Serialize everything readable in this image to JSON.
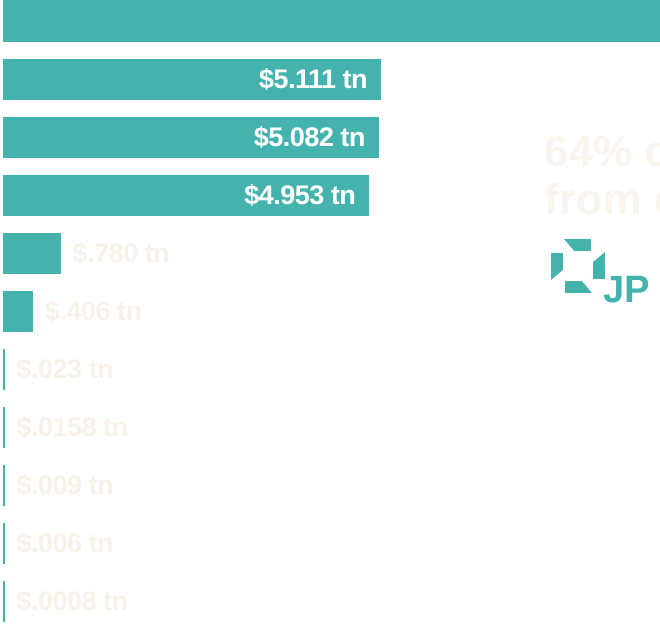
{
  "chart_data": {
    "type": "bar",
    "orientation": "horizontal",
    "values": [
      5.111,
      5.082,
      4.953,
      0.78,
      0.406,
      0.023,
      0.0158,
      0.009,
      0.006,
      0.0008
    ],
    "value_labels": [
      "$5.111 tn",
      "$5.082 tn",
      "$4.953 tn",
      "$.780 tn",
      "$.406 tn",
      "$.023 tn",
      "$.0158 tn",
      "$.009 tn",
      "$.006 tn",
      "$.0008 tn"
    ],
    "top_bar_note": "first bar extends past the visible crop",
    "bar_color": "#44b3ae",
    "label_color_inside": "#ffffff",
    "label_color_outside": "#f7f1e8"
  },
  "side_text": {
    "line1": "64% o",
    "line2": "from c"
  },
  "logo": {
    "icon": "octagon-logo-icon",
    "text": "JP",
    "color": "#44b3ae"
  }
}
